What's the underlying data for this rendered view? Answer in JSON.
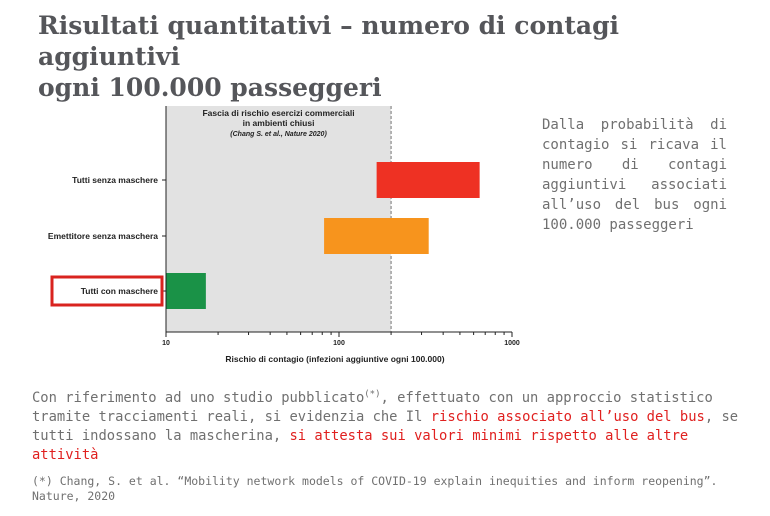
{
  "slide": {
    "title_line1": "Risultati quantitativi – numero di contagi aggiuntivi",
    "title_line2": "ogni 100.000 passeggeri",
    "side_note": [
      "Dalla probabilità di",
      "contagio si ricava il",
      "numero di contagi",
      "aggiuntivi associati",
      "all’uso del bus ogni",
      "100.000 passeggeri"
    ],
    "paragraph": {
      "part1": "Con riferimento ad uno studio pubblicato",
      "sup": "(*)",
      "part2": ", effettuato con un approccio statistico tramite tracciamenti reali, si evidenzia che Il ",
      "red1": "rischio associato all’uso del bus",
      "part3": ", se tutti indossano la mascherina, ",
      "red2": "si attesta sui valori minimi rispetto alle altre attività"
    },
    "footnote_line1": "(*) Chang, S. et al. “Mobility network models of COVID-19 explain inequities and inform reopening”.",
    "footnote_line2": "Nature, 2020"
  },
  "chart_data": {
    "type": "bar",
    "orientation": "horizontal-range",
    "x_scale": "log",
    "xlim": [
      10,
      1000
    ],
    "x_ticks": [
      "10",
      "100",
      "1000"
    ],
    "xlabel": "Rischio di contagio (infezioni aggiuntive ogni 100.000)",
    "shaded_region": {
      "title_line1": "Fascia di rischio esercizi commerciali",
      "title_line2": "in ambienti chiusi",
      "source": "(Chang S. et al., Nature 2020)",
      "x_range": [
        10,
        200
      ]
    },
    "categories": [
      "Tutti senza maschere",
      "Emettitore senza maschera",
      "Tutti con maschere"
    ],
    "ranges": [
      [
        165,
        650
      ],
      [
        82,
        330
      ],
      [
        10,
        17
      ]
    ],
    "colors": [
      "#ee3123",
      "#f7941d",
      "#1a9247"
    ],
    "highlighted_category": "Tutti con maschere",
    "highlight_color": "#d9231f",
    "shade_color": "#e2e2e2"
  }
}
